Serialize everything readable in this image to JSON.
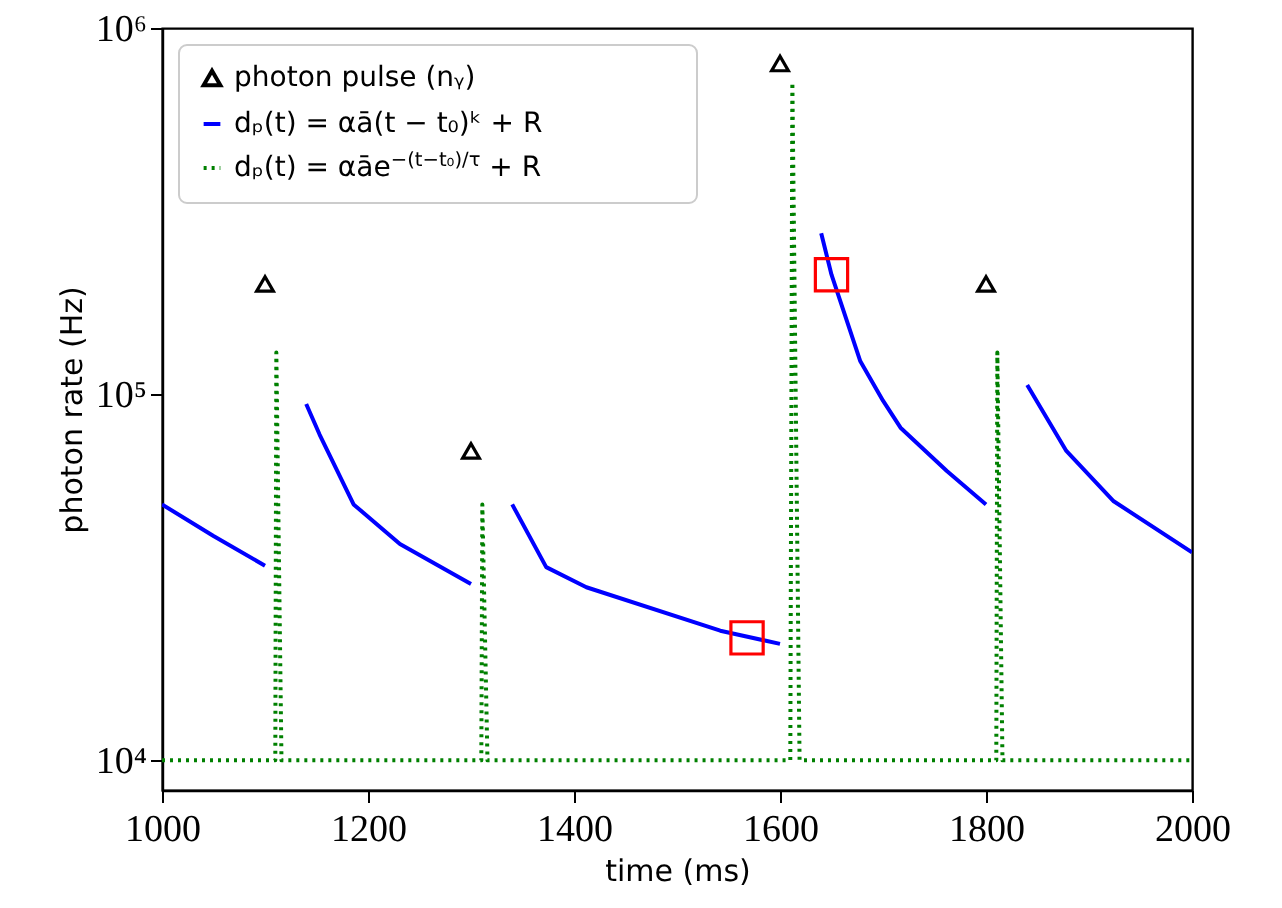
{
  "chart_data": {
    "type": "line",
    "xlabel": "time (ms)",
    "ylabel": "photon rate (Hz)",
    "log": "y",
    "grid": false,
    "legend": "top left",
    "xlim": [
      1000,
      2000
    ],
    "xticks": [
      1000,
      1200,
      1400,
      1600,
      1800,
      2000
    ],
    "ylim": [
      8300,
      1000000
    ],
    "yticks": [
      {
        "value": 10000,
        "label": "10⁴"
      },
      {
        "value": 100000,
        "label": "10⁵"
      },
      {
        "value": 1000000,
        "label": "10⁶"
      }
    ],
    "series": [
      {
        "name": "photon pulse (nᵧ)",
        "type": "scatter",
        "marker": "triangle",
        "color": "#000000",
        "x": [
          1100,
          1300,
          1600,
          1800
        ],
        "values": [
          200000,
          70000,
          800000,
          200000
        ]
      },
      {
        "name": "dₚ(t) = αā(t − t₀)ᵏ + R",
        "line_style": "solid",
        "color": "#0000ff",
        "x": [
          1000,
          1050,
          1100
        ],
        "values": [
          50000,
          41000,
          34000
        ]
      },
      {
        "line_style": "solid",
        "color": "#0000ff",
        "x": [
          1140,
          1153,
          1186,
          1231,
          1300
        ],
        "values": [
          94000,
          77600,
          50000,
          39000,
          30300
        ]
      },
      {
        "line_style": "solid",
        "color": "#0000ff",
        "x": [
          1340,
          1373,
          1412,
          1542,
          1600
        ],
        "values": [
          50000,
          33700,
          29700,
          22600,
          20800
        ]
      },
      {
        "line_style": "solid",
        "color": "#0000ff",
        "x": [
          1640,
          1650,
          1678,
          1700,
          1717,
          1762,
          1800
        ],
        "values": [
          275000,
          212000,
          123000,
          96000,
          81000,
          61700,
          50000
        ]
      },
      {
        "line_style": "solid",
        "color": "#0000ff",
        "x": [
          1840,
          1878,
          1924,
          2000
        ],
        "values": [
          106000,
          70000,
          51000,
          37000
        ]
      },
      {
        "name": "dₚ(t) = αāe$^{−(t−t₀)/τ}$ + R",
        "line_style": "dotted",
        "color": "#008000",
        "x": [
          1000,
          1110,
          1111,
          1116,
          1310,
          1311,
          1316,
          1610,
          1612,
          1619,
          1810,
          1811,
          1816,
          2000
        ],
        "values": [
          10000,
          10000,
          130000,
          10000,
          10000,
          50000,
          10000,
          10000,
          710000,
          10000,
          10000,
          130000,
          10000,
          10000
        ]
      },
      {
        "type": "scatter",
        "marker": "square",
        "color": "#ff0000",
        "x": [
          1568,
          1650
        ],
        "values": [
          21600,
          212000
        ]
      }
    ]
  }
}
